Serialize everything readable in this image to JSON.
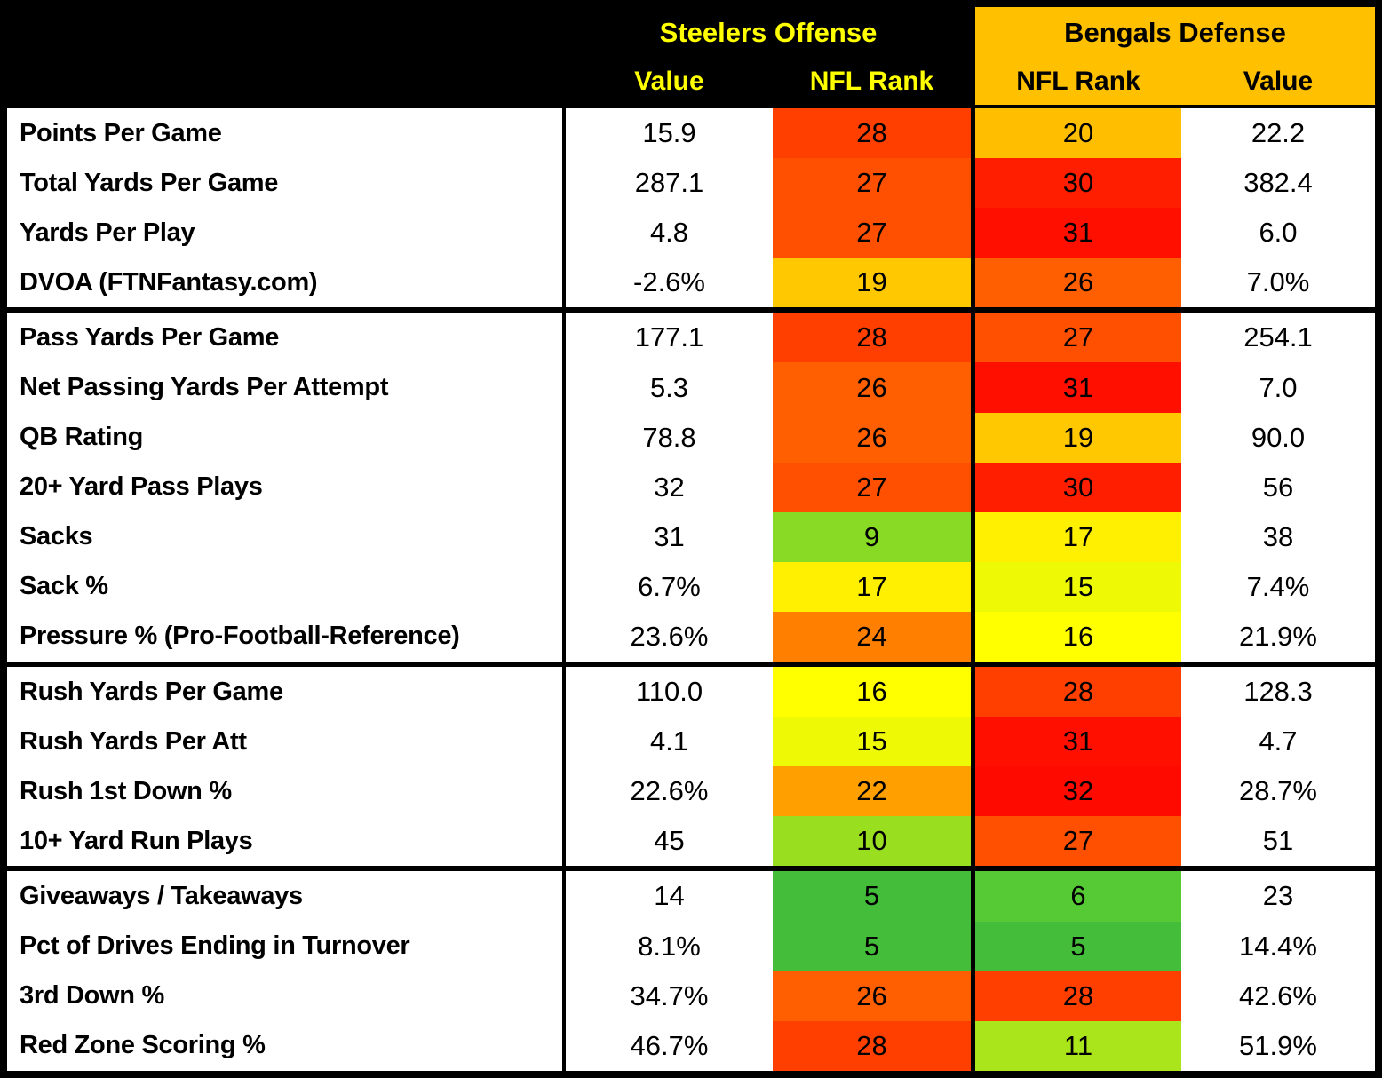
{
  "style": {
    "outer_border_color": "#000000",
    "left_header_bg": "#000000",
    "left_header_text": "#FFFF00",
    "right_header_bg": "#FFC000",
    "right_header_text": "#000000",
    "body_bg": "#FFFFFF",
    "body_text": "#000000",
    "rank_scale": {
      "best_green": "#44BD3B",
      "mid_yellow": "#FFFF00",
      "worst_red": "#FF0000"
    }
  },
  "chart_data": {
    "type": "table",
    "header": {
      "left_group": "Steelers Offense",
      "right_group": "Bengals Defense",
      "subcols": [
        "Value",
        "NFL Rank",
        "NFL Rank",
        "Value"
      ]
    },
    "legend_note": "NFL Rank cells shaded green (good) to red (bad), 1-32",
    "sections": [
      {
        "rows": [
          {
            "stat": "Points Per Game",
            "off_value": "15.9",
            "off_rank": "28",
            "off_rank_color": "#FF3F00",
            "def_rank": "20",
            "def_rank_color": "#FFBF00",
            "def_value": "22.2"
          },
          {
            "stat": "Total Yards Per Game",
            "off_value": "287.1",
            "off_rank": "27",
            "off_rank_color": "#FF4F00",
            "def_rank": "30",
            "def_rank_color": "#FF1F00",
            "def_value": "382.4"
          },
          {
            "stat": "Yards Per Play",
            "off_value": "4.8",
            "off_rank": "27",
            "off_rank_color": "#FF4F00",
            "def_rank": "31",
            "def_rank_color": "#FF0F00",
            "def_value": "6.0"
          },
          {
            "stat": "DVOA (FTNFantasy.com)",
            "off_value": "-2.6%",
            "off_rank": "19",
            "off_rank_color": "#FFC800",
            "def_rank": "26",
            "def_rank_color": "#FF5F00",
            "def_value": "7.0%"
          }
        ]
      },
      {
        "rows": [
          {
            "stat": "Pass Yards Per Game",
            "off_value": "177.1",
            "off_rank": "28",
            "off_rank_color": "#FF3F00",
            "def_rank": "27",
            "def_rank_color": "#FF4F00",
            "def_value": "254.1"
          },
          {
            "stat": "Net Passing Yards Per Attempt",
            "off_value": "5.3",
            "off_rank": "26",
            "off_rank_color": "#FF5F00",
            "def_rank": "31",
            "def_rank_color": "#FF0F00",
            "def_value": "7.0"
          },
          {
            "stat": "QB Rating",
            "off_value": "78.8",
            "off_rank": "26",
            "off_rank_color": "#FF5F00",
            "def_rank": "19",
            "def_rank_color": "#FFC800",
            "def_value": "90.0"
          },
          {
            "stat": "20+ Yard Pass Plays",
            "off_value": "32",
            "off_rank": "27",
            "off_rank_color": "#FF4F00",
            "def_rank": "30",
            "def_rank_color": "#FF1F00",
            "def_value": "56"
          },
          {
            "stat": "Sacks",
            "off_value": "31",
            "off_rank": "9",
            "off_rank_color": "#88DA25",
            "def_rank": "17",
            "def_rank_color": "#FFEF00",
            "def_value": "38"
          },
          {
            "stat": "Sack %",
            "off_value": "6.7%",
            "off_rank": "17",
            "off_rank_color": "#FFEF00",
            "def_rank": "15",
            "def_rank_color": "#EEFA05",
            "def_value": "7.4%"
          },
          {
            "stat": "Pressure % (Pro-Football-Reference)",
            "off_value": "23.6%",
            "off_rank": "24",
            "off_rank_color": "#FF7F00",
            "def_rank": "16",
            "def_rank_color": "#FFFF00",
            "def_value": "21.9%"
          }
        ]
      },
      {
        "rows": [
          {
            "stat": "Rush Yards Per Game",
            "off_value": "110.0",
            "off_rank": "16",
            "off_rank_color": "#FFFF00",
            "def_rank": "28",
            "def_rank_color": "#FF3F00",
            "def_value": "128.3"
          },
          {
            "stat": "Rush Yards Per Att",
            "off_value": "4.1",
            "off_rank": "15",
            "off_rank_color": "#EEFA05",
            "def_rank": "31",
            "def_rank_color": "#FF0F00",
            "def_value": "4.7"
          },
          {
            "stat": "Rush 1st Down %",
            "off_value": "22.6%",
            "off_rank": "22",
            "off_rank_color": "#FF9F00",
            "def_rank": "32",
            "def_rank_color": "#FF0A00",
            "def_value": "28.7%"
          },
          {
            "stat": "10+ Yard Run Plays",
            "off_value": "45",
            "off_rank": "10",
            "off_rank_color": "#99DF20",
            "def_rank": "27",
            "def_rank_color": "#FF4F00",
            "def_value": "51"
          }
        ]
      },
      {
        "rows": [
          {
            "stat": "Giveaways / Takeaways",
            "off_value": "14",
            "off_rank": "5",
            "off_rank_color": "#44BD3B",
            "def_rank": "6",
            "def_rank_color": "#55CA35",
            "def_value": "23"
          },
          {
            "stat": "Pct of Drives Ending in Turnover",
            "off_value": "8.1%",
            "off_rank": "5",
            "off_rank_color": "#44BD3B",
            "def_rank": "5",
            "def_rank_color": "#44BD3B",
            "def_value": "14.4%"
          },
          {
            "stat": "3rd Down %",
            "off_value": "34.7%",
            "off_rank": "26",
            "off_rank_color": "#FF5F00",
            "def_rank": "28",
            "def_rank_color": "#FF3F00",
            "def_value": "42.6%"
          },
          {
            "stat": "Red Zone Scoring %",
            "off_value": "46.7%",
            "off_rank": "28",
            "off_rank_color": "#FF3F00",
            "def_rank": "11",
            "def_rank_color": "#AAE51B",
            "def_value": "51.9%"
          }
        ]
      }
    ]
  }
}
